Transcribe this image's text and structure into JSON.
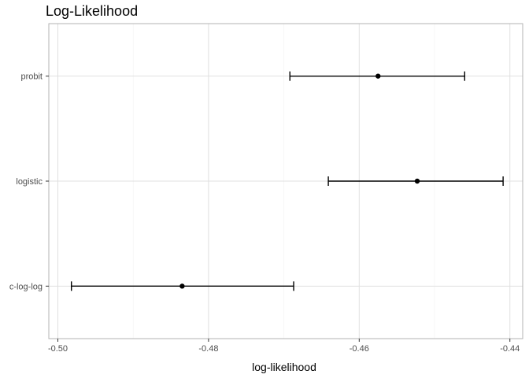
{
  "chart_data": {
    "type": "errorbar",
    "title": "Log-Likelihood",
    "xlabel": "log-likelihood",
    "ylabel": "",
    "xlim": [
      -0.5012,
      -0.4383
    ],
    "xticks": [
      -0.5,
      -0.48,
      -0.46,
      -0.44
    ],
    "xtick_labels": [
      "-0.50",
      "-0.48",
      "-0.46",
      "-0.44"
    ],
    "categories": [
      "probit",
      "logistic",
      "c-log-log"
    ],
    "estimates": [
      -0.4575,
      -0.4523,
      -0.4835
    ],
    "lower": [
      -0.4692,
      -0.4641,
      -0.4982
    ],
    "upper": [
      -0.446,
      -0.4409,
      -0.4687
    ],
    "grid": true,
    "legend": "none",
    "colors": {
      "panel_border": "#b3b3b3",
      "grid_major": "#e0e0e0",
      "grid_minor": "#f2f2f2",
      "marks": "#000000",
      "tick_label": "#4d4d4d"
    }
  }
}
